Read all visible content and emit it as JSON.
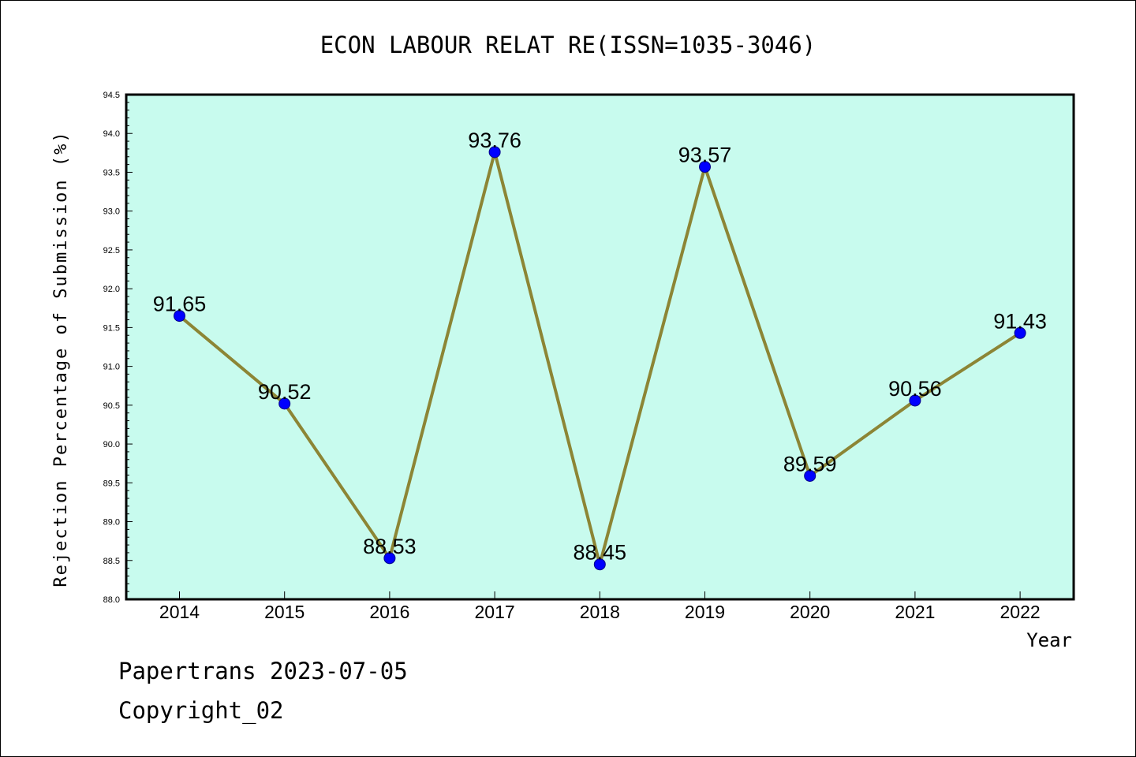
{
  "chart_data": {
    "type": "line",
    "title": "ECON LABOUR RELAT RE(ISSN=1035-3046)",
    "xlabel": "Year",
    "ylabel": "Rejection Percentage of Submission (%)",
    "categories": [
      "2014",
      "2015",
      "2016",
      "2017",
      "2018",
      "2019",
      "2020",
      "2021",
      "2022"
    ],
    "values": [
      91.65,
      90.52,
      88.53,
      93.76,
      88.45,
      93.57,
      89.59,
      90.56,
      91.43
    ],
    "data_labels": [
      "91.65",
      "90.52",
      "88.53",
      "93.76",
      "88.45",
      "93.57",
      "89.59",
      "90.56",
      "91.43"
    ],
    "ylim": [
      88.0,
      94.5
    ],
    "yticks": [
      "88.0",
      "88.5",
      "89.0",
      "89.5",
      "90.0",
      "90.5",
      "91.0",
      "91.5",
      "92.0",
      "92.5",
      "93.0",
      "93.5",
      "94.0",
      "94.5"
    ],
    "grid": false,
    "colors": {
      "plot_background": "#c8fbee",
      "line": "#8c8535",
      "marker": "#0000ff"
    }
  },
  "footer": {
    "source": "Papertrans 2023-07-05",
    "copyright": "Copyright_02"
  }
}
